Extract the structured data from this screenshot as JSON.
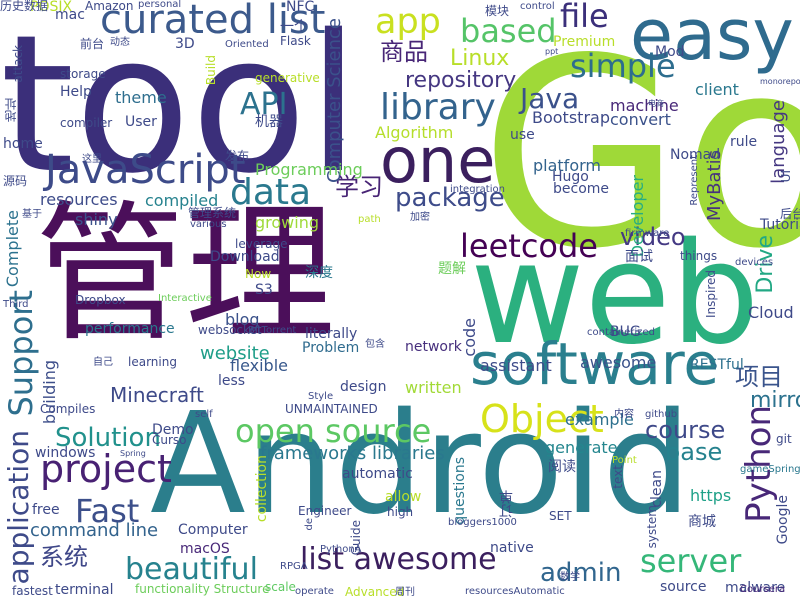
{
  "words": [
    {
      "text": "tool",
      "color": "#3b2f7a"
    },
    {
      "text": "Go",
      "color": "#9fd938"
    },
    {
      "text": "管理",
      "color": "#4b0f5a"
    },
    {
      "text": "web",
      "color": "#2bb07f"
    },
    {
      "text": "Android",
      "color": "#2b7e8c"
    },
    {
      "text": "easy",
      "color": "#2f6b8e"
    },
    {
      "text": "software",
      "color": "#2a7f8e"
    },
    {
      "text": "one",
      "color": "#3b1f5e"
    },
    {
      "text": "JavaScript",
      "color": "#3d4b89"
    },
    {
      "text": "app",
      "color": "#c9e020"
    },
    {
      "text": "curated list",
      "color": "#3c5a8c"
    },
    {
      "text": "simple",
      "color": "#2d6d8e"
    },
    {
      "text": "based",
      "color": "#55c468"
    },
    {
      "text": "file",
      "color": "#3b2f7a"
    },
    {
      "text": "library",
      "color": "#33638d"
    },
    {
      "text": "data",
      "color": "#2a798e"
    },
    {
      "text": "project",
      "color": "#482173"
    },
    {
      "text": "Object",
      "color": "#d7e21a"
    },
    {
      "text": "open source",
      "color": "#5cc863"
    },
    {
      "text": "list awesome",
      "color": "#3b1f5e"
    },
    {
      "text": "Python",
      "color": "#482878"
    },
    {
      "text": "beautiful",
      "color": "#26828e"
    },
    {
      "text": "server",
      "color": "#35b779"
    },
    {
      "text": "Fast",
      "color": "#3c4f8a"
    },
    {
      "text": "Support",
      "color": "#2e6f8e"
    },
    {
      "text": "Solution",
      "color": "#21918c"
    },
    {
      "text": "application",
      "color": "#3e4a89"
    },
    {
      "text": "leetcode",
      "color": "#440154"
    },
    {
      "text": "Java",
      "color": "#3b518b"
    },
    {
      "text": "API",
      "color": "#2c728e"
    },
    {
      "text": "package",
      "color": "#3e4c8a"
    },
    {
      "text": "Linux",
      "color": "#b8de29"
    },
    {
      "text": "repository",
      "color": "#453781"
    },
    {
      "text": "商品",
      "color": "#482677"
    },
    {
      "text": "学习",
      "color": "#482475"
    },
    {
      "text": "系统",
      "color": "#3f4788"
    },
    {
      "text": "项目",
      "color": "#3a548c"
    },
    {
      "text": "admin",
      "color": "#31668e"
    },
    {
      "text": "course",
      "color": "#3e4989"
    },
    {
      "text": "video",
      "color": "#443983"
    },
    {
      "text": "mirror",
      "color": "#2c728e"
    },
    {
      "text": "Drive",
      "color": "#22a884"
    },
    {
      "text": "base",
      "color": "#26828e"
    },
    {
      "text": "Minecraft",
      "color": "#3e4a89"
    },
    {
      "text": "website",
      "color": "#1f9e89"
    },
    {
      "text": "command line",
      "color": "#33638d"
    },
    {
      "text": "Computer Science",
      "color": "#3b518b"
    },
    {
      "text": "language",
      "color": "#453781"
    },
    {
      "text": "MyBatis",
      "color": "#46327e"
    },
    {
      "text": "frameworks libraries",
      "color": "#2a788e"
    },
    {
      "text": "Programming",
      "color": "#6ccd5a"
    },
    {
      "text": "Algorithm",
      "color": "#b5de2b"
    },
    {
      "text": "theme",
      "color": "#2e6e8e"
    },
    {
      "text": "Bootstrap",
      "color": "#3e4a89"
    },
    {
      "text": "platform",
      "color": "#33638d"
    },
    {
      "text": "machine",
      "color": "#482878"
    },
    {
      "text": "client",
      "color": "#2a788e"
    },
    {
      "text": "convert",
      "color": "#3b528b"
    },
    {
      "text": "example",
      "color": "#2d708e"
    },
    {
      "text": "generate",
      "color": "#24868e"
    },
    {
      "text": "Premium",
      "color": "#b8de29"
    },
    {
      "text": "Developer",
      "color": "#27ad81"
    },
    {
      "text": "Cloud",
      "color": "#3e4989"
    },
    {
      "text": "resources",
      "color": "#3e4c8a"
    },
    {
      "text": "compiled",
      "color": "#26828e"
    },
    {
      "text": "shiny",
      "color": "#3b528b"
    },
    {
      "text": "Complete",
      "color": "#2c728e"
    },
    {
      "text": "growing",
      "color": "#9fda3a"
    },
    {
      "text": "blog",
      "color": "#3b528b"
    },
    {
      "text": "performance",
      "color": "#2a788e"
    },
    {
      "text": "flexible",
      "color": "#38588c"
    },
    {
      "text": "building",
      "color": "#3d4e8a"
    },
    {
      "text": "Problem",
      "color": "#2f6b8e"
    },
    {
      "text": "written",
      "color": "#a2da37"
    },
    {
      "text": "design",
      "color": "#3e4a89"
    },
    {
      "text": "awesome",
      "color": "#3b528b"
    },
    {
      "text": "RESTful",
      "color": "#2d708e"
    },
    {
      "text": "assistant",
      "color": "#3e4c8a"
    },
    {
      "text": "network",
      "color": "#472f7d"
    },
    {
      "text": "code",
      "color": "#3e4a89"
    },
    {
      "text": "BUG",
      "color": "#3e4a89"
    },
    {
      "text": "windows",
      "color": "#3e4a89"
    },
    {
      "text": "free",
      "color": "#3e4a89"
    },
    {
      "text": "https",
      "color": "#1fa188"
    },
    {
      "text": "macOS",
      "color": "#482878"
    },
    {
      "text": "native",
      "color": "#3e4a89"
    },
    {
      "text": "terminal",
      "color": "#3e4a89"
    },
    {
      "text": "fastest",
      "color": "#3e4a89"
    },
    {
      "text": "malware",
      "color": "#3e4a89"
    },
    {
      "text": "source",
      "color": "#3e4a89"
    },
    {
      "text": "Advanced",
      "color": "#b8de29"
    },
    {
      "text": "Coursera",
      "color": "#482878"
    },
    {
      "text": "functionality Structure",
      "color": "#6ccd5a"
    },
    {
      "text": "scale",
      "color": "#5ec962"
    },
    {
      "text": "collection",
      "color": "#b8de29"
    },
    {
      "text": "Guide",
      "color": "#3e4a89"
    },
    {
      "text": "high",
      "color": "#3e4a89"
    },
    {
      "text": "SET",
      "color": "#3e4a89"
    },
    {
      "text": "questions",
      "color": "#2a788e"
    },
    {
      "text": "allow",
      "color": "#b8de29"
    },
    {
      "text": "clean",
      "color": "#3e4a89"
    },
    {
      "text": "system",
      "color": "#3e4a89"
    },
    {
      "text": "git",
      "color": "#3e4a89"
    },
    {
      "text": "gameSpring",
      "color": "#2a788e"
    },
    {
      "text": "Google",
      "color": "#3e4a89"
    },
    {
      "text": "商城",
      "color": "#3e4a89"
    },
    {
      "text": "阅读",
      "color": "#3e4a89"
    },
    {
      "text": "订单",
      "color": "#3e4a89"
    },
    {
      "text": "Download",
      "color": "#3e4a89"
    },
    {
      "text": "Now",
      "color": "#b8de29"
    },
    {
      "text": "S3",
      "color": "#3e4a89"
    },
    {
      "text": "深度",
      "color": "#2a788e"
    },
    {
      "text": "题解",
      "color": "#6ccd5a"
    },
    {
      "text": "面试",
      "color": "#3e4a89"
    },
    {
      "text": "things",
      "color": "#3e4a89"
    },
    {
      "text": "devices",
      "color": "#3e4a89"
    },
    {
      "text": "Tutorial",
      "color": "#3e4a89"
    },
    {
      "text": "后台",
      "color": "#3e4a89"
    },
    {
      "text": "rule",
      "color": "#3e4a89"
    },
    {
      "text": "UI",
      "color": "#3e4a89"
    },
    {
      "text": "Inspired",
      "color": "#3e4a89"
    },
    {
      "text": "containerized",
      "color": "#3e4a89"
    },
    {
      "text": "less",
      "color": "#3e4a89"
    },
    {
      "text": "Mod",
      "color": "#3e4a89"
    },
    {
      "text": "Nomad",
      "color": "#3e4a89"
    },
    {
      "text": "Hugo",
      "color": "#3e4a89"
    },
    {
      "text": "become",
      "color": "#3e4a89"
    },
    {
      "text": "use",
      "color": "#3e4a89"
    },
    {
      "text": "一个",
      "color": "#3e4a89"
    },
    {
      "text": "Flask",
      "color": "#3e4a89"
    },
    {
      "text": "Oriented",
      "color": "#3e4a89"
    },
    {
      "text": "NFC",
      "color": "#3e4a89"
    },
    {
      "text": "模块",
      "color": "#3e4a89"
    },
    {
      "text": "control",
      "color": "#3e4a89"
    },
    {
      "text": "ppt",
      "color": "#3e4a89"
    },
    {
      "text": "电商",
      "color": "#3e4a89"
    },
    {
      "text": "monorepo",
      "color": "#3e4a89"
    },
    {
      "text": "POSIX",
      "color": "#b8de29"
    },
    {
      "text": "Amazon",
      "color": "#3e4a89"
    },
    {
      "text": "personal",
      "color": "#3e4a89"
    },
    {
      "text": "mac",
      "color": "#3e4a89"
    },
    {
      "text": "前台",
      "color": "#3e4a89"
    },
    {
      "text": "动态",
      "color": "#3e4a89"
    },
    {
      "text": "3D",
      "color": "#3e4a89"
    },
    {
      "text": "attack",
      "color": "#3e4a89"
    },
    {
      "text": "Build",
      "color": "#b8de29"
    },
    {
      "text": "generative",
      "color": "#b8de29"
    },
    {
      "text": "storage",
      "color": "#3e4a89"
    },
    {
      "text": "Help",
      "color": "#3e4a89"
    },
    {
      "text": "地址",
      "color": "#3e4a89"
    },
    {
      "text": "compiler",
      "color": "#3e4a89"
    },
    {
      "text": "User",
      "color": "#3e4a89"
    },
    {
      "text": "机器",
      "color": "#3e4a89"
    },
    {
      "text": "home",
      "color": "#3e4a89"
    },
    {
      "text": "这里",
      "color": "#3e4a89"
    },
    {
      "text": "发布",
      "color": "#3e4a89"
    },
    {
      "text": "源码",
      "color": "#3e4a89"
    },
    {
      "text": "基于",
      "color": "#3e4a89"
    },
    {
      "text": "管理系统",
      "color": "#3e4a89"
    },
    {
      "text": "various",
      "color": "#3e4a89"
    },
    {
      "text": "leverage",
      "color": "#3e4a89"
    },
    {
      "text": "path",
      "color": "#b8de29"
    },
    {
      "text": "加密",
      "color": "#3e4a89"
    },
    {
      "text": "integration",
      "color": "#3e4a89"
    },
    {
      "text": "Represent",
      "color": "#3e4a89"
    },
    {
      "text": "firmware",
      "color": "#3e4a89"
    },
    {
      "text": "Third",
      "color": "#3e4a89"
    },
    {
      "text": "Dropbox",
      "color": "#3e4a89"
    },
    {
      "text": "Interactive",
      "color": "#6ccd5a"
    },
    {
      "text": "websocket",
      "color": "#3e4a89"
    },
    {
      "text": "BitTorrent",
      "color": "#3e4a89"
    },
    {
      "text": "literally",
      "color": "#3e4a89"
    },
    {
      "text": "包含",
      "color": "#3e4a89"
    },
    {
      "text": "自己",
      "color": "#3e4a89"
    },
    {
      "text": "learning",
      "color": "#3e4a89"
    },
    {
      "text": "Compiles",
      "color": "#3e4a89"
    },
    {
      "text": "self",
      "color": "#3e4a89"
    },
    {
      "text": "UNMAINTAINED",
      "color": "#3e4a89"
    },
    {
      "text": "Style",
      "color": "#3e4a89"
    },
    {
      "text": "Demo",
      "color": "#3e4a89"
    },
    {
      "text": "Curso",
      "color": "#3e4a89"
    },
    {
      "text": "Spring",
      "color": "#3e4a89"
    },
    {
      "text": "内容",
      "color": "#3e4a89"
    },
    {
      "text": "github",
      "color": "#3e4a89"
    },
    {
      "text": "automatic",
      "color": "#3e4a89"
    },
    {
      "text": "Point",
      "color": "#b8de29"
    },
    {
      "text": "text",
      "color": "#3e4a89"
    },
    {
      "text": "Computer",
      "color": "#3e4a89"
    },
    {
      "text": "Engineer",
      "color": "#3e4a89"
    },
    {
      "text": "de",
      "color": "#3e4a89"
    },
    {
      "text": "PythonA",
      "color": "#3e4a89"
    },
    {
      "text": "operate",
      "color": "#3e4a89"
    },
    {
      "text": "RPGA",
      "color": "#3e4a89"
    },
    {
      "text": "周刊",
      "color": "#3e4a89"
    },
    {
      "text": "resourcesAutomatic",
      "color": "#3e4a89"
    },
    {
      "text": "bloggers1000",
      "color": "#3e4a89"
    },
    {
      "text": "数学",
      "color": "#3e4a89"
    },
    {
      "text": "历史数据",
      "color": "#3e4a89"
    }
  ]
}
